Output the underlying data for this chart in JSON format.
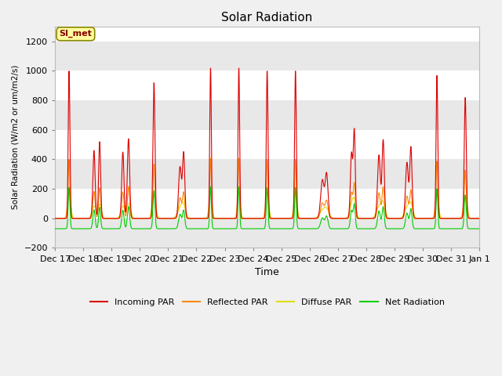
{
  "title": "Solar Radiation",
  "ylabel": "Solar Radiation (W/m2 or um/m2/s)",
  "xlabel": "Time",
  "ylim": [
    -200,
    1300
  ],
  "yticks": [
    -200,
    0,
    200,
    400,
    600,
    800,
    1000,
    1200
  ],
  "plot_bg": "#ffffff",
  "band_color": "#e8e8e8",
  "legend_label": "SI_met",
  "series": {
    "incoming_par": {
      "color": "#dd0000",
      "label": "Incoming PAR"
    },
    "reflected_par": {
      "color": "#ff8800",
      "label": "Reflected PAR"
    },
    "diffuse_par": {
      "color": "#dddd00",
      "label": "Diffuse PAR"
    },
    "net_radiation": {
      "color": "#00cc00",
      "label": "Net Radiation"
    }
  },
  "x_tick_labels": [
    "Dec 17",
    "Dec 18",
    "Dec 19",
    "Dec 20",
    "Dec 21",
    "Dec 22",
    "Dec 23",
    "Dec 24",
    "Dec 25",
    "Dec 26",
    "Dec 27",
    "Dec 28",
    "Dec 29",
    "Dec 30",
    "Dec 31",
    "Jan 1"
  ],
  "n_days": 15,
  "points_per_day": 288
}
